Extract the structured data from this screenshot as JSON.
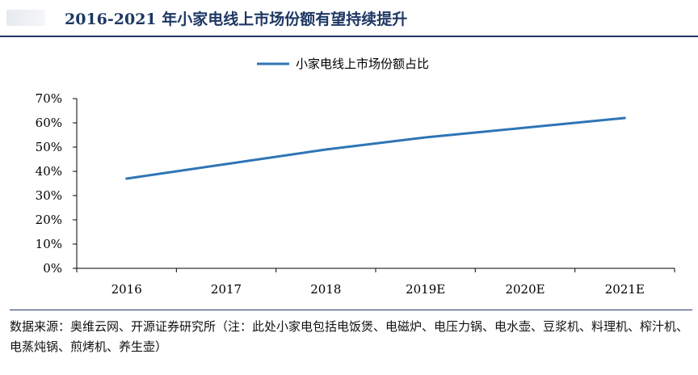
{
  "header": {
    "title": "2016-2021 年小家电线上市场份额有望持续提升"
  },
  "colors": {
    "title": "#1f3864",
    "series": "#2e75b6",
    "axis": "#000000"
  },
  "chart_data": {
    "type": "line",
    "title": "",
    "xlabel": "",
    "ylabel": "",
    "categories": [
      "2016",
      "2017",
      "2018",
      "2019E",
      "2020E",
      "2021E"
    ],
    "series": [
      {
        "name": "小家电线上市场份额占比",
        "values": [
          37,
          43,
          49,
          54,
          58,
          62
        ]
      }
    ],
    "ylim": [
      0,
      70
    ],
    "yticks": [
      "0%",
      "10%",
      "20%",
      "30%",
      "40%",
      "50%",
      "60%",
      "70%"
    ],
    "legend": "top-center",
    "grid": false
  },
  "footer": {
    "source": "数据来源：奥维云网、开源证券研究所（注：此处小家电包括电饭煲、电磁炉、电压力锅、电水壶、豆浆机、料理机、榨汁机、电蒸炖锅、煎烤机、养生壶）"
  }
}
